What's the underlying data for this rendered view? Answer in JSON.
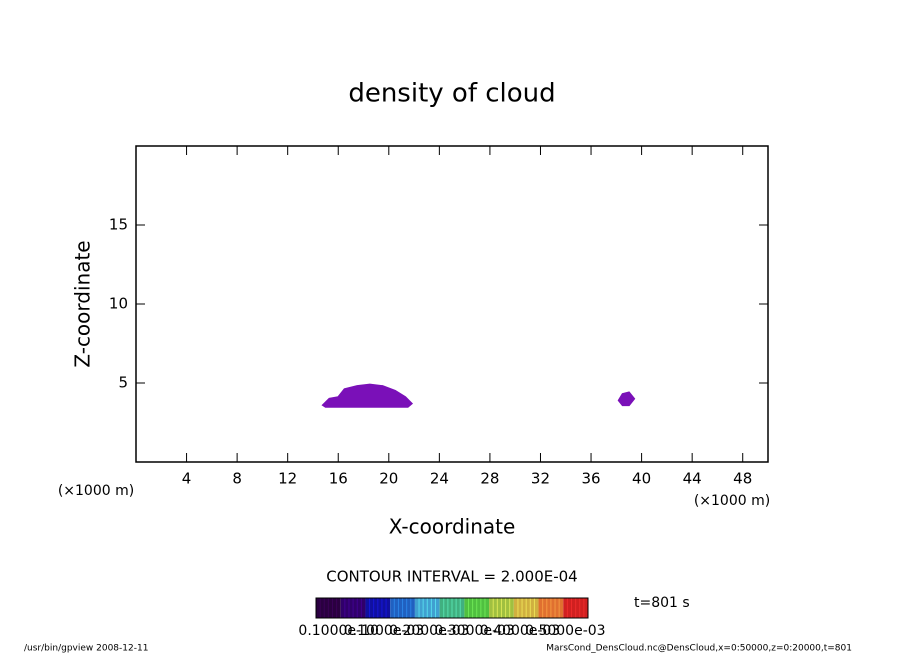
{
  "chart_data": {
    "type": "contour",
    "title": "density of cloud",
    "xlabel": "X-coordinate",
    "ylabel": "Z-coordinate",
    "xunit": "(×1000 m)",
    "yunit": "(×1000 m)",
    "xlim": [
      0,
      50
    ],
    "xticks": [
      4,
      8,
      12,
      16,
      20,
      24,
      28,
      32,
      36,
      40,
      44,
      48
    ],
    "ylim": [
      0,
      20
    ],
    "yticks": [
      5,
      10,
      15
    ],
    "color": "#7a10b8",
    "regions": [
      {
        "x": [
          14.8,
          15.3,
          16,
          16.5,
          17.5,
          18.5,
          19.5,
          20.5,
          21.3,
          21.8,
          21.5,
          15
        ],
        "z": [
          3.6,
          4.0,
          4.1,
          4.6,
          4.8,
          4.9,
          4.8,
          4.5,
          4.1,
          3.7,
          3.5,
          3.5
        ]
      },
      {
        "x": [
          38.2,
          38.5,
          39,
          39.4,
          39,
          38.5
        ],
        "z": [
          3.9,
          4.3,
          4.4,
          4.0,
          3.6,
          3.6
        ]
      }
    ],
    "contour_interval": "CONTOUR INTERVAL = 2.000E-04",
    "time_label": "t=801 s",
    "colorbar": {
      "colors": [
        "#2a0040",
        "#30006a",
        "#1010a0",
        "#2060c0",
        "#40a0d0",
        "#40b080",
        "#50c040",
        "#a0c040",
        "#d0b040",
        "#e07030",
        "#d02020"
      ],
      "ticks": [
        {
          "value": 1e-11,
          "label": "0.1000e-10"
        },
        {
          "value": 0.0001,
          "label": "0.1000e-03"
        },
        {
          "value": 0.0002,
          "label": "0.2000e-03"
        },
        {
          "value": 0.0003,
          "label": "0.3000e-03"
        },
        {
          "value": 0.0004,
          "label": "0.4000e-03"
        },
        {
          "value": 0.0005,
          "label": "0.5000e-03"
        }
      ]
    },
    "footer_left": "/usr/bin/gpview  2008-12-11",
    "footer_right": "MarsCond_DensCloud.nc@DensCloud,x=0:50000,z=0:20000,t=801"
  }
}
